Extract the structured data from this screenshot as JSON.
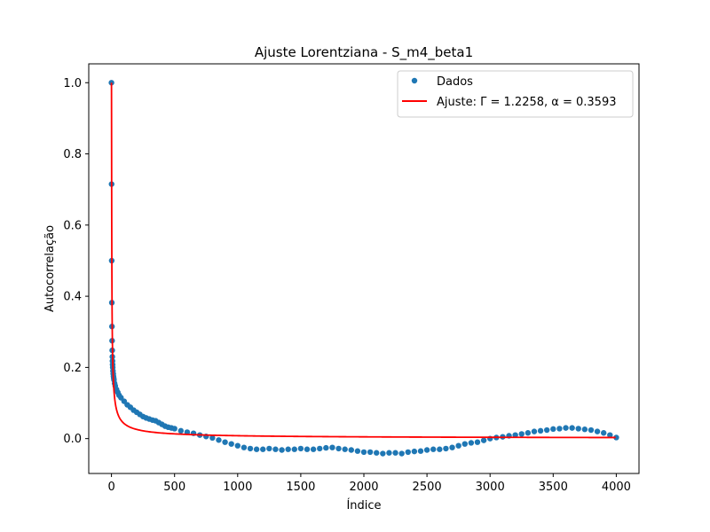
{
  "chart_data": {
    "type": "scatter",
    "title": "Ajuste Lorentziana - S_m4_beta1",
    "xlabel": "Índice",
    "ylabel": "Autocorrelação",
    "xlim": [
      -180,
      4180
    ],
    "ylim": [
      -0.098,
      1.053
    ],
    "xticks": [
      0,
      500,
      1000,
      1500,
      2000,
      2500,
      3000,
      3500,
      4000
    ],
    "xtick_labels": [
      "0",
      "500",
      "1000",
      "1500",
      "2000",
      "2500",
      "3000",
      "3500",
      "4000"
    ],
    "yticks": [
      0.0,
      0.2,
      0.4,
      0.6,
      0.8,
      1.0
    ],
    "ytick_labels": [
      "0.0",
      "0.2",
      "0.4",
      "0.6",
      "0.8",
      "1.0"
    ],
    "grid": false,
    "legend_position": "top-right",
    "series": [
      {
        "name": "Dados",
        "kind": "scatter",
        "color": "#1f77b4",
        "x": [
          0,
          1,
          2,
          3,
          4,
          5,
          6,
          7,
          8,
          9,
          10,
          12,
          14,
          16,
          18,
          20,
          25,
          30,
          40,
          50,
          60,
          75,
          100,
          125,
          150,
          175,
          200,
          225,
          250,
          275,
          300,
          325,
          350,
          375,
          400,
          425,
          450,
          475,
          500,
          550,
          600,
          650,
          700,
          750,
          800,
          850,
          900,
          950,
          1000,
          1050,
          1100,
          1150,
          1200,
          1250,
          1300,
          1350,
          1400,
          1450,
          1500,
          1550,
          1600,
          1650,
          1700,
          1750,
          1800,
          1850,
          1900,
          1950,
          2000,
          2050,
          2100,
          2150,
          2200,
          2250,
          2300,
          2350,
          2400,
          2450,
          2500,
          2550,
          2600,
          2650,
          2700,
          2750,
          2800,
          2850,
          2900,
          2950,
          3000,
          3050,
          3100,
          3150,
          3200,
          3250,
          3300,
          3350,
          3400,
          3450,
          3500,
          3550,
          3600,
          3650,
          3700,
          3750,
          3800,
          3850,
          3900,
          3950,
          4000
        ],
        "y": [
          1.0,
          0.715,
          0.5,
          0.382,
          0.315,
          0.275,
          0.248,
          0.23,
          0.218,
          0.208,
          0.2,
          0.19,
          0.182,
          0.175,
          0.17,
          0.165,
          0.155,
          0.148,
          0.138,
          0.13,
          0.122,
          0.115,
          0.105,
          0.095,
          0.088,
          0.08,
          0.074,
          0.068,
          0.062,
          0.058,
          0.055,
          0.052,
          0.05,
          0.045,
          0.04,
          0.035,
          0.032,
          0.03,
          0.028,
          0.022,
          0.018,
          0.015,
          0.01,
          0.006,
          0.002,
          -0.004,
          -0.01,
          -0.015,
          -0.02,
          -0.025,
          -0.028,
          -0.03,
          -0.03,
          -0.028,
          -0.03,
          -0.032,
          -0.03,
          -0.03,
          -0.028,
          -0.03,
          -0.03,
          -0.028,
          -0.026,
          -0.025,
          -0.028,
          -0.03,
          -0.032,
          -0.035,
          -0.038,
          -0.038,
          -0.04,
          -0.042,
          -0.04,
          -0.04,
          -0.042,
          -0.038,
          -0.036,
          -0.035,
          -0.032,
          -0.03,
          -0.03,
          -0.028,
          -0.025,
          -0.02,
          -0.015,
          -0.012,
          -0.01,
          -0.005,
          0.0,
          0.003,
          0.005,
          0.008,
          0.01,
          0.013,
          0.016,
          0.02,
          0.022,
          0.024,
          0.027,
          0.028,
          0.03,
          0.03,
          0.028,
          0.026,
          0.024,
          0.02,
          0.016,
          0.01,
          0.003
        ]
      },
      {
        "name": "Ajuste: Γ = 1.2258, α = 0.3593",
        "kind": "line",
        "color": "#ff0000",
        "gamma": 1.2258,
        "alpha": 0.3593
      }
    ]
  }
}
